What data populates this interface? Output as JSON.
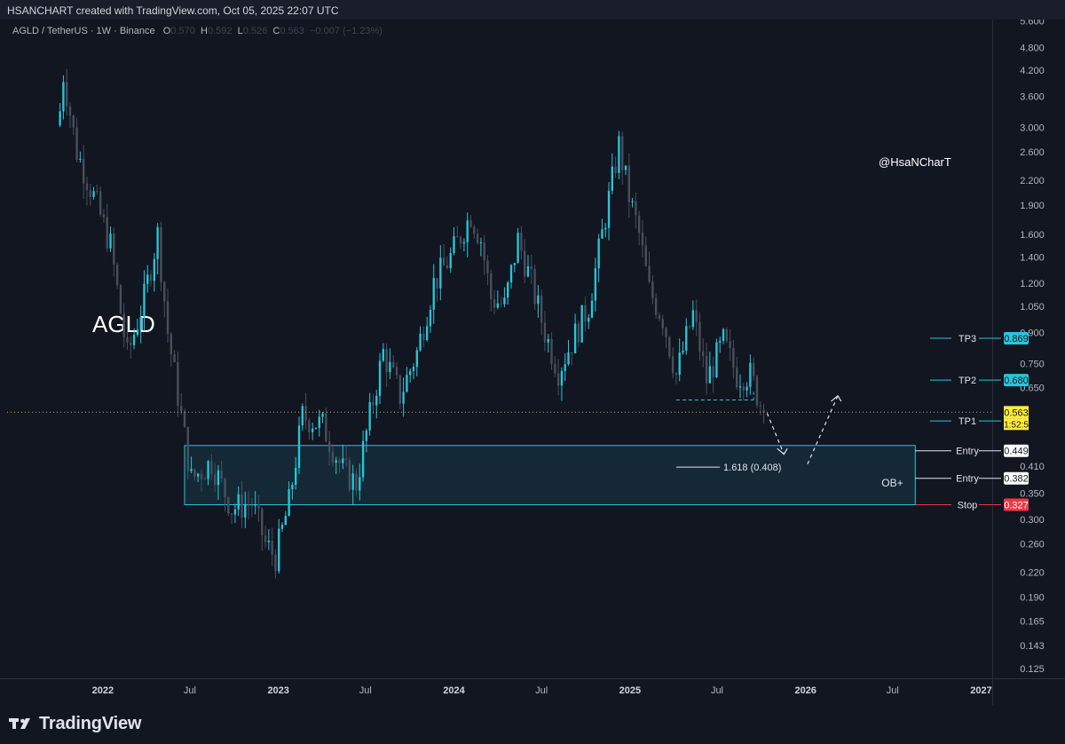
{
  "header": {
    "caption": "HSANCHART created with TradingView.com, Oct 05, 2025 22:07 UTC"
  },
  "legend": {
    "symbol": "AGLD / TetherUS · 1W · Binance",
    "open_label": "O",
    "open": "0.570",
    "high_label": "H",
    "high": "0.592",
    "low_label": "L",
    "low": "0.526",
    "close_label": "C",
    "close": "0.563",
    "change": "−0.007 (−1.23%)"
  },
  "footer": {
    "brand": "TradingView"
  },
  "colors": {
    "background": "#121621",
    "bull": "#26c6da",
    "bear": "#4a4f5c",
    "stop": "#f23645",
    "current": "#ffeb3b",
    "zone": "#26c6da"
  },
  "chart_data": {
    "type": "candlestick",
    "title": "AGLD",
    "watermark": "@HsaNCharT",
    "y_scale": "log",
    "ylim": [
      0.118,
      5.65
    ],
    "y_ticks": [
      5.6,
      4.8,
      4.2,
      3.6,
      3.0,
      2.6,
      2.2,
      1.9,
      1.6,
      1.4,
      1.2,
      1.05,
      0.9,
      0.75,
      0.65,
      0.41,
      0.35,
      0.3,
      0.26,
      0.22,
      0.19,
      0.165,
      0.143,
      0.125
    ],
    "y_tick_labels": [
      "5.600",
      "4.800",
      "4.200",
      "3.600",
      "3.000",
      "2.600",
      "2.200",
      "1.900",
      "1.600",
      "1.400",
      "1.200",
      "1.050",
      "0.900",
      "0.750",
      "0.650",
      "0.410",
      "0.350",
      "0.300",
      "0.260",
      "0.220",
      "0.190",
      "0.165",
      "0.143",
      "0.125"
    ],
    "x_ticks": [
      {
        "label": "2022",
        "date": "2022-01-01",
        "bold": true
      },
      {
        "label": "Jul",
        "date": "2022-07-01",
        "bold": false
      },
      {
        "label": "2023",
        "date": "2023-01-01",
        "bold": true
      },
      {
        "label": "Jul",
        "date": "2023-07-01",
        "bold": false
      },
      {
        "label": "2024",
        "date": "2024-01-01",
        "bold": true
      },
      {
        "label": "Jul",
        "date": "2024-07-01",
        "bold": false
      },
      {
        "label": "2025",
        "date": "2025-01-01",
        "bold": true
      },
      {
        "label": "Jul",
        "date": "2025-07-01",
        "bold": false
      },
      {
        "label": "2026",
        "date": "2026-01-01",
        "bold": true
      },
      {
        "label": "Jul",
        "date": "2026-07-01",
        "bold": false
      },
      {
        "label": "2027",
        "date": "2027-01-01",
        "bold": true
      }
    ],
    "x_range": [
      "2021-06-16",
      "2027-01-24"
    ],
    "price_anchors": [
      {
        "date": "2021-10-04",
        "price": 3.3
      },
      {
        "date": "2021-10-11",
        "price": 4.1
      },
      {
        "date": "2021-11-08",
        "price": 2.6
      },
      {
        "date": "2021-12-13",
        "price": 2.0
      },
      {
        "date": "2022-01-17",
        "price": 1.5
      },
      {
        "date": "2022-02-21",
        "price": 0.78
      },
      {
        "date": "2022-03-28",
        "price": 1.1
      },
      {
        "date": "2022-04-25",
        "price": 1.6
      },
      {
        "date": "2022-05-16",
        "price": 0.9
      },
      {
        "date": "2022-06-13",
        "price": 0.55
      },
      {
        "date": "2022-07-04",
        "price": 0.38
      },
      {
        "date": "2022-08-15",
        "price": 0.42
      },
      {
        "date": "2022-09-26",
        "price": 0.32
      },
      {
        "date": "2022-11-07",
        "price": 0.33
      },
      {
        "date": "2022-12-05",
        "price": 0.26
      },
      {
        "date": "2022-12-26",
        "price": 0.24
      },
      {
        "date": "2023-01-23",
        "price": 0.33
      },
      {
        "date": "2023-02-20",
        "price": 0.55
      },
      {
        "date": "2023-04-03",
        "price": 0.52
      },
      {
        "date": "2023-05-15",
        "price": 0.4
      },
      {
        "date": "2023-06-12",
        "price": 0.37
      },
      {
        "date": "2023-07-10",
        "price": 0.55
      },
      {
        "date": "2023-08-07",
        "price": 0.8
      },
      {
        "date": "2023-09-11",
        "price": 0.62
      },
      {
        "date": "2023-10-16",
        "price": 0.8
      },
      {
        "date": "2023-11-20",
        "price": 1.2
      },
      {
        "date": "2023-12-25",
        "price": 1.4
      },
      {
        "date": "2024-02-05",
        "price": 1.8
      },
      {
        "date": "2024-02-26",
        "price": 1.55
      },
      {
        "date": "2024-03-18",
        "price": 1.1
      },
      {
        "date": "2024-04-15",
        "price": 1.05
      },
      {
        "date": "2024-05-13",
        "price": 1.55
      },
      {
        "date": "2024-06-10",
        "price": 1.2
      },
      {
        "date": "2024-07-08",
        "price": 0.9
      },
      {
        "date": "2024-08-05",
        "price": 0.72
      },
      {
        "date": "2024-09-02",
        "price": 0.85
      },
      {
        "date": "2024-10-07",
        "price": 1.05
      },
      {
        "date": "2024-11-04",
        "price": 1.6
      },
      {
        "date": "2024-12-09",
        "price": 2.7
      },
      {
        "date": "2024-12-30",
        "price": 2.0
      },
      {
        "date": "2025-01-20",
        "price": 1.6
      },
      {
        "date": "2025-02-10",
        "price": 1.15
      },
      {
        "date": "2025-03-10",
        "price": 0.98
      },
      {
        "date": "2025-04-07",
        "price": 0.7
      },
      {
        "date": "2025-05-12",
        "price": 1.0
      },
      {
        "date": "2025-06-09",
        "price": 0.68
      },
      {
        "date": "2025-07-14",
        "price": 0.85
      },
      {
        "date": "2025-08-11",
        "price": 0.7
      },
      {
        "date": "2025-09-08",
        "price": 0.7
      },
      {
        "date": "2025-10-06",
        "price": 0.563
      }
    ],
    "last_price": {
      "value": "0.563",
      "countdown": "01:52:55"
    },
    "targets": [
      {
        "label": "TP3",
        "price": 0.869,
        "price_label": "0.869"
      },
      {
        "label": "TP2",
        "price": 0.68,
        "price_label": "0.680"
      },
      {
        "label": "TP1",
        "price": 0.535,
        "price_label": "0.535"
      }
    ],
    "entries": [
      {
        "label": "Entry",
        "price": 0.449,
        "price_label": "0.449"
      },
      {
        "label": "Entry",
        "price": 0.382,
        "price_label": "0.382"
      }
    ],
    "stop": {
      "label": "Stop",
      "price": 0.327,
      "price_label": "0.327"
    },
    "zone": {
      "label": "OB+",
      "top": 0.463,
      "bottom": 0.327,
      "start": "2022-06-20",
      "end": "2026-08-17"
    },
    "fib_label": "1.618 (0.408)",
    "fib_price": 0.408
  }
}
